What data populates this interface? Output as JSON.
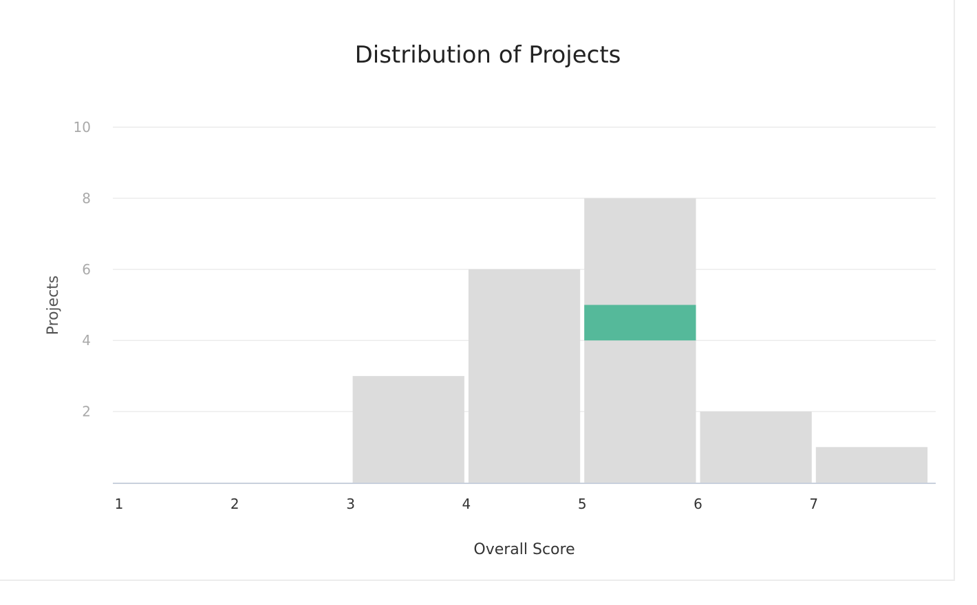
{
  "chart_data": {
    "type": "bar",
    "title": "Distribution of Projects",
    "xlabel": "Overall Score",
    "ylabel": "Projects",
    "bins": [
      {
        "start": 1,
        "end": 2,
        "value": 0
      },
      {
        "start": 2,
        "end": 3,
        "value": 0
      },
      {
        "start": 3,
        "end": 4,
        "value": 3
      },
      {
        "start": 4,
        "end": 5,
        "value": 6
      },
      {
        "start": 5,
        "end": 6,
        "value": 8
      },
      {
        "start": 6,
        "end": 7,
        "value": 2
      },
      {
        "start": 7,
        "end": 8,
        "value": 1
      }
    ],
    "highlight": {
      "start": 5,
      "end": 6,
      "low": 4,
      "high": 5
    },
    "x_ticks": [
      "1",
      "2",
      "3",
      "4",
      "5",
      "6",
      "7"
    ],
    "y_ticks": [
      "2",
      "4",
      "6",
      "8",
      "10"
    ],
    "xlim": [
      1,
      8
    ],
    "ylim": [
      0,
      10
    ],
    "grid": true,
    "colors": {
      "bar": "#dcdcdc",
      "highlight": "#55b99a",
      "grid": "#ececec",
      "axis": "#c8d0dc"
    }
  }
}
